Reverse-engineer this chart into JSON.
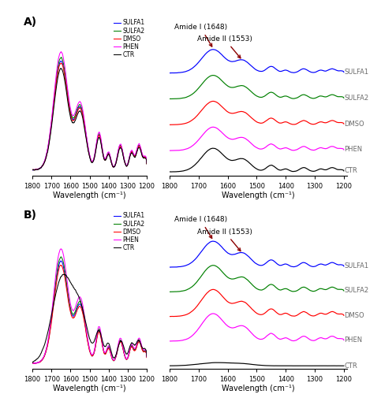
{
  "colors": [
    "blue",
    "green",
    "red",
    "magenta",
    "dimgray"
  ],
  "colors_bold": [
    "blue",
    "green",
    "red",
    "magenta",
    "black"
  ],
  "labels": [
    "SULFA1",
    "SULFA2",
    "DMSO",
    "PHEN",
    "CTR"
  ],
  "panel_A_label": "A)",
  "panel_B_label": "B)",
  "amide_I_label": "Amide I (1648)",
  "amide_II_label": "Amide II (1553)",
  "xlabel": "Wavelength (cm⁻¹)",
  "stacked_offsets": [
    4.2,
    3.1,
    2.0,
    0.9,
    0.0
  ],
  "stacked_offsets_B": [
    3.8,
    2.85,
    1.9,
    0.95,
    0.0
  ]
}
